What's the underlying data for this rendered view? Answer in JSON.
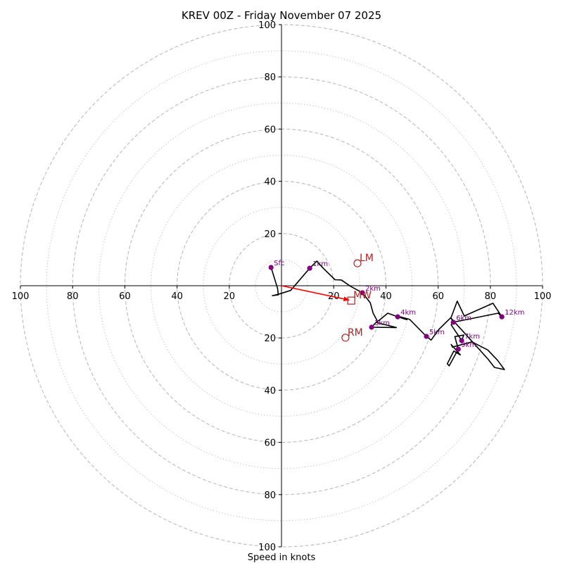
{
  "chart_data": {
    "type": "line",
    "subtype": "hodograph",
    "title": "KREV 00Z - Friday November 07 2025",
    "xlabel": "Speed in knots",
    "ylabel": "",
    "range": [
      -100,
      100
    ],
    "ring_major": [
      20,
      40,
      60,
      80,
      100
    ],
    "ring_minor": [
      10,
      30,
      50,
      70,
      90
    ],
    "tick_labels": [
      "20",
      "40",
      "60",
      "80",
      "100"
    ],
    "grid": true,
    "colors": {
      "hodograph": "#000000",
      "height_markers": "#800080",
      "storm_motion": "#b22222",
      "mean_wind_vector": "#ff0000",
      "ring": "#bbbbbb",
      "axis": "#000000"
    },
    "hodograph_path": [
      [
        -4.0,
        7.0
      ],
      [
        -1.5,
        -1.0
      ],
      [
        -1.2,
        -3.5
      ],
      [
        -3.5,
        -3.8
      ],
      [
        -1.2,
        -3.3
      ],
      [
        3.5,
        -1.8
      ],
      [
        10.8,
        6.7
      ],
      [
        13.5,
        9.4
      ],
      [
        16.2,
        6.5
      ],
      [
        20.5,
        2.3
      ],
      [
        22.9,
        2.2
      ],
      [
        26.4,
        -0.2
      ],
      [
        31.0,
        -2.7
      ],
      [
        34.0,
        -6.5
      ],
      [
        35.1,
        -10.5
      ],
      [
        36.7,
        -13.5
      ],
      [
        34.5,
        -15.9
      ],
      [
        44.0,
        -16.0
      ],
      [
        36.4,
        -14.1
      ],
      [
        40.7,
        -10.5
      ],
      [
        44.5,
        -11.9
      ],
      [
        48.0,
        -13.0
      ],
      [
        44.0,
        -11.5
      ],
      [
        49.1,
        -12.9
      ],
      [
        55.5,
        -19.4
      ],
      [
        57.3,
        -20.8
      ],
      [
        60.3,
        -16.7
      ],
      [
        65.0,
        -12.1
      ],
      [
        67.3,
        -5.9
      ],
      [
        70.0,
        -11.6
      ],
      [
        81.0,
        -6.7
      ],
      [
        84.4,
        -11.9
      ],
      [
        83.0,
        -10.5
      ],
      [
        65.8,
        -14.0
      ],
      [
        65.0,
        -12.5
      ],
      [
        70.0,
        -18.0
      ],
      [
        79.0,
        -28.0
      ],
      [
        81.6,
        -31.3
      ],
      [
        85.4,
        -32.1
      ],
      [
        82.7,
        -28.5
      ],
      [
        79.0,
        -24.6
      ],
      [
        73.0,
        -21.5
      ],
      [
        65.5,
        -23.5
      ],
      [
        65.0,
        -22.5
      ],
      [
        68.5,
        -26.5
      ],
      [
        66.0,
        -25.0
      ],
      [
        63.5,
        -29.9
      ],
      [
        64.2,
        -30.7
      ],
      [
        67.7,
        -24.3
      ],
      [
        66.4,
        -19.5
      ],
      [
        69.8,
        -18.9
      ],
      [
        69.0,
        -21.0
      ],
      [
        65.0,
        -15.0
      ],
      [
        65.8,
        -14.0
      ]
    ],
    "height_markers": [
      {
        "label": "Sfc",
        "u": -4.0,
        "v": 7.0
      },
      {
        "label": "1km",
        "u": 10.8,
        "v": 6.7
      },
      {
        "label": "2km",
        "u": 31.0,
        "v": -2.7
      },
      {
        "label": "3km",
        "u": 34.5,
        "v": -15.9
      },
      {
        "label": "4km",
        "u": 44.5,
        "v": -11.9
      },
      {
        "label": "5km",
        "u": 55.5,
        "v": -19.4
      },
      {
        "label": "6km",
        "u": 65.8,
        "v": -14.0
      },
      {
        "label": "7km",
        "u": 69.0,
        "v": -21.0
      },
      {
        "label": "9km",
        "u": 67.7,
        "v": -24.3
      },
      {
        "label": "12km",
        "u": 84.4,
        "v": -11.9
      }
    ],
    "storm_motion": [
      {
        "label": "LM",
        "u": 29.1,
        "v": 8.6,
        "marker": "circle"
      },
      {
        "label": "MW",
        "u": 26.7,
        "v": -5.7,
        "marker": "square"
      },
      {
        "label": "RM",
        "u": 24.5,
        "v": -19.9,
        "marker": "circle"
      }
    ],
    "mean_wind_vector": {
      "from": [
        0,
        0
      ],
      "to": [
        26.0,
        -5.5
      ]
    }
  }
}
